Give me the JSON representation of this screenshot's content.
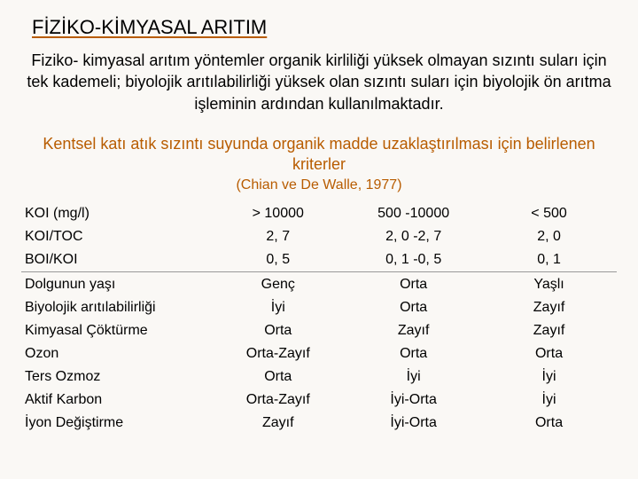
{
  "title": "FİZİKO-KİMYASAL ARITIM",
  "intro": "Fiziko- kimyasal arıtım yöntemler organik kirliliği yüksek olmayan sızıntı suları için tek kademeli; biyolojik arıtılabilirliği yüksek olan sızıntı suları için biyolojik ön arıtma işleminin ardından kullanılmaktadır.",
  "subhead1": "Kentsel katı atık sızıntı suyunda organik madde uzaklaştırılması için belirlenen kriterler",
  "subhead2": "(Chian ve De Walle, 1977)",
  "rows": [
    {
      "label": "KOI (mg/l)",
      "c1": "> 10000",
      "c2": "500 -10000",
      "c3": "< 500"
    },
    {
      "label": "KOI/TOC",
      "c1": "2, 7",
      "c2": "2, 0 -2, 7",
      "c3": "2, 0"
    },
    {
      "label": "BOI/KOI",
      "c1": "0, 5",
      "c2": "0, 1 -0, 5",
      "c3": "0, 1"
    },
    {
      "label": "Dolgunun yaşı",
      "c1": "Genç",
      "c2": "Orta",
      "c3": "Yaşlı"
    },
    {
      "label": "Biyolojik arıtılabilirliği",
      "c1": "İyi",
      "c2": "Orta",
      "c3": "Zayıf"
    },
    {
      "label": "Kimyasal Çöktürme",
      "c1": "Orta",
      "c2": "Zayıf",
      "c3": "Zayıf"
    },
    {
      "label": "Ozon",
      "c1": "Orta-Zayıf",
      "c2": "Orta",
      "c3": "Orta"
    },
    {
      "label": "Ters Ozmoz",
      "c1": "Orta",
      "c2": "İyi",
      "c3": "İyi"
    },
    {
      "label": "Aktif Karbon",
      "c1": "Orta-Zayıf",
      "c2": "İyi-Orta",
      "c3": "İyi"
    },
    {
      "label": "İyon Değiştirme",
      "c1": "Zayıf",
      "c2": "İyi-Orta",
      "c3": "Orta"
    }
  ]
}
